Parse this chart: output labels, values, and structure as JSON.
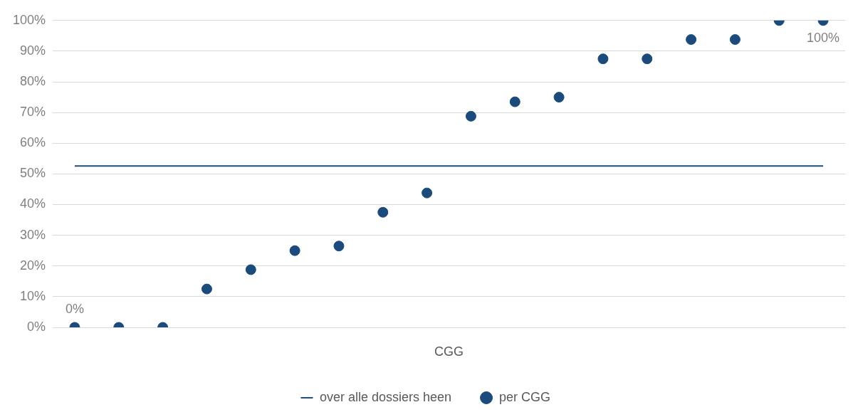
{
  "chart_data": {
    "type": "scatter",
    "xlabel": "CGG",
    "categories": [
      null,
      null,
      null,
      null,
      null,
      null,
      null,
      null,
      null,
      null,
      null,
      null,
      null,
      null,
      null,
      null,
      null,
      null
    ],
    "series": [
      {
        "name": "over alle dossiers heen",
        "type": "line",
        "color": "#1f4e79",
        "values": [
          52.6,
          52.6,
          52.6,
          52.6,
          52.6,
          52.6,
          52.6,
          52.6,
          52.6,
          52.6,
          52.6,
          52.6,
          52.6,
          52.6,
          52.6,
          52.6,
          52.6,
          52.6
        ]
      },
      {
        "name": "per CGG",
        "color": "#1a4b7c",
        "marker": "circle",
        "values": [
          0,
          0,
          0,
          12.5,
          18.8,
          25,
          26.5,
          37.5,
          43.8,
          68.8,
          73.5,
          75,
          87.5,
          87.5,
          93.8,
          93.8,
          100,
          100
        ],
        "value_labels": [
          "0%",
          null,
          null,
          null,
          null,
          null,
          null,
          null,
          null,
          null,
          null,
          null,
          null,
          null,
          null,
          null,
          null,
          "100%"
        ]
      }
    ],
    "ylim": [
      0,
      100
    ],
    "yticks": [
      {
        "value": 0,
        "label": "0%"
      },
      {
        "value": 10,
        "label": "10%"
      },
      {
        "value": 20,
        "label": "20%"
      },
      {
        "value": 30,
        "label": "30%"
      },
      {
        "value": 40,
        "label": "40%"
      },
      {
        "value": 50,
        "label": "50%"
      },
      {
        "value": 60,
        "label": "60%"
      },
      {
        "value": 70,
        "label": "70%"
      },
      {
        "value": 80,
        "label": "80%"
      },
      {
        "value": 90,
        "label": "90%"
      },
      {
        "value": 100,
        "label": "100%"
      }
    ],
    "grid": "y",
    "legend": "bottom"
  }
}
